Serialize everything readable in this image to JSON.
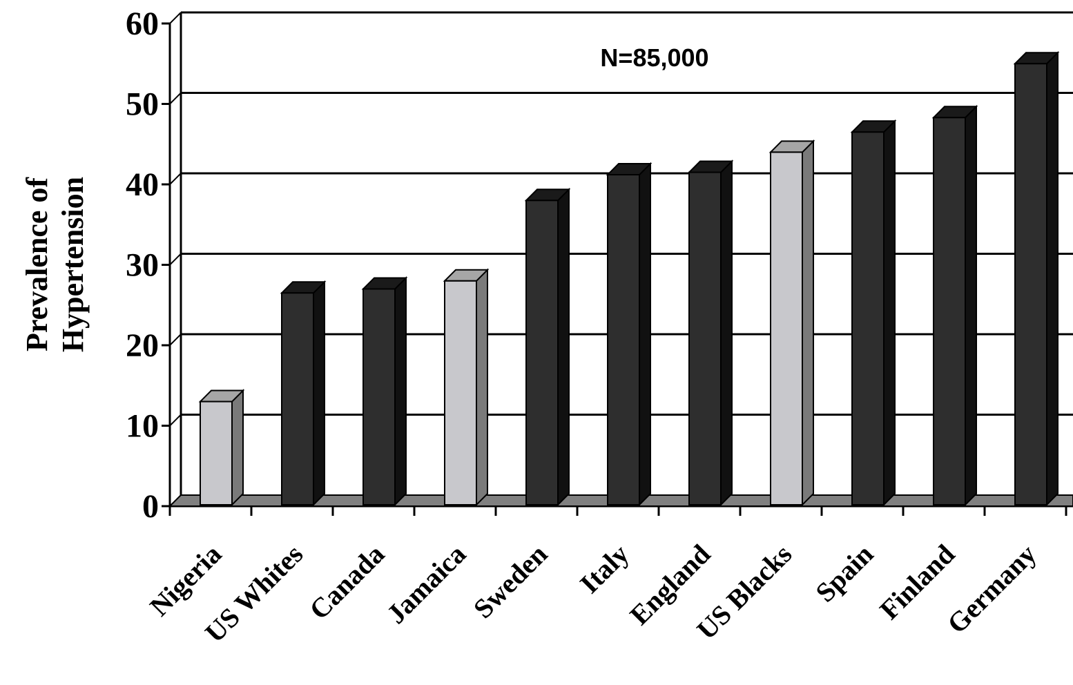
{
  "chart_data": {
    "type": "bar",
    "style": "3d",
    "ylabel_lines": [
      "Prevalence of",
      "Hypertension"
    ],
    "xlabel": "",
    "annotation": "N=85,000",
    "ylim": [
      0,
      60
    ],
    "y_ticks": [
      "0",
      "10",
      "20",
      "30",
      "40",
      "50",
      "60"
    ],
    "grid": true,
    "categories": [
      "Nigeria",
      "US Whites",
      "Canada",
      "Jamaica",
      "Sweden",
      "Italy",
      "England",
      "US Blacks",
      "Spain",
      "Finland",
      "Germany"
    ],
    "values": [
      13,
      26.5,
      27,
      28,
      38,
      41.2,
      41.5,
      44,
      46.5,
      48.3,
      55
    ],
    "bar_groups": [
      "light",
      "dark",
      "dark",
      "light",
      "dark",
      "dark",
      "dark",
      "light",
      "dark",
      "dark",
      "dark"
    ],
    "colors": {
      "dark_front": "#2e2e2e",
      "dark_top": "#1a1a1a",
      "dark_side": "#111111",
      "light_front": "#c8c8cc",
      "light_top": "#a6a6a6",
      "light_side": "#7a7a7a",
      "floor": "#808080",
      "grid": "#000000"
    }
  }
}
